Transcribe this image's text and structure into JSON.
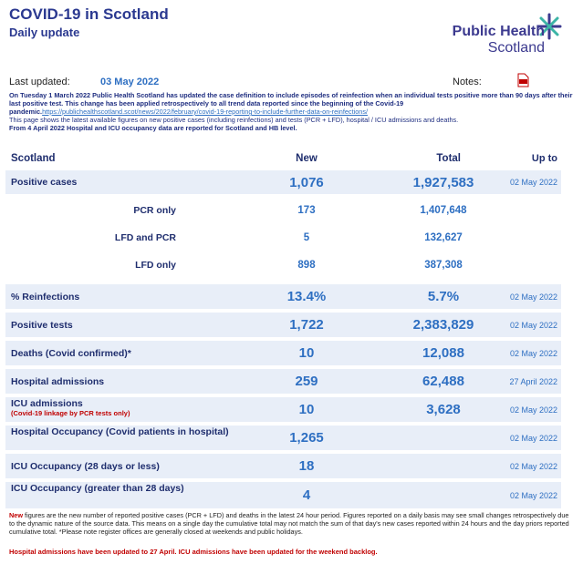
{
  "header": {
    "title": "COVID-19 in Scotland",
    "subtitle": "Daily update",
    "logo_top": "Public Health",
    "logo_bottom": "Scotland"
  },
  "meta": {
    "last_updated_label": "Last updated:",
    "last_updated": "03 May 2022",
    "notes_label": "Notes:"
  },
  "intro": {
    "p1": "On Tuesday 1 March 2022 Public Health Scotland has updated the case definition to include episodes of reinfection when an individual tests positive more than 90 days after their last positive test. This change has been applied retrospectively to all trend data reported since the beginning of the Covid-19 pandemic.",
    "link": "https://publichealthscotland.scot/news/2022/february/covid-19-reporting-to-include-further-data-on-reinfections/",
    "p2": "This page shows the latest available figures on new positive cases (including reinfections) and tests (PCR + LFD), hospital / ICU admissions and deaths.",
    "p3": "From 4 April 2022 Hospital and ICU occupancy data are reported for Scotland and HB level."
  },
  "table": {
    "columns": [
      "Scotland",
      "New",
      "Total",
      "Up to"
    ],
    "rows": [
      {
        "label": "Positive cases",
        "new": "1,076",
        "total": "1,927,583",
        "upto": "02 May 2022"
      },
      {
        "label": "PCR only",
        "new": "173",
        "total": "1,407,648",
        "sub": true
      },
      {
        "label": "LFD and PCR",
        "new": "5",
        "total": "132,627",
        "sub": true
      },
      {
        "label": "LFD only",
        "new": "898",
        "total": "387,308",
        "sub": true
      },
      {
        "label": "% Reinfections",
        "new": "13.4%",
        "total": "5.7%",
        "upto": "02 May 2022"
      },
      {
        "label": "Positive tests",
        "new": "1,722",
        "total": "2,383,829",
        "upto": "02 May 2022"
      },
      {
        "label": "Deaths (Covid confirmed)*",
        "new": "10",
        "total": "12,088",
        "upto": "02 May 2022"
      },
      {
        "label": "Hospital admissions",
        "new": "259",
        "total": "62,488",
        "upto": "27 April 2022"
      },
      {
        "label": "ICU admissions",
        "note": "(Covid-19 linkage by PCR tests only)",
        "new": "10",
        "total": "3,628",
        "upto": "02 May 2022"
      },
      {
        "label": "Hospital Occupancy (Covid patients in hospital)",
        "new": "1,265",
        "upto": "02 May 2022"
      },
      {
        "label": "ICU Occupancy (28 days or less)",
        "new": "18",
        "upto": "02 May 2022"
      },
      {
        "label": "ICU Occupancy (greater than 28 days)",
        "new": "4",
        "upto": "02 May 2022"
      }
    ]
  },
  "footer": {
    "lead": "New",
    "text": " figures are the new number of reported positive cases (PCR + LFD) and deaths in the latest 24 hour period. Figures reported on a daily basis may see small changes retrospectively due to the dynamic nature of the source data. This means on a single day the cumulative total may not match the sum of that day's new cases reported within 24 hours and the day priors reported cumulative total. *Please note register offices are generally closed at weekends and public holidays.",
    "update": "Hospital admissions have been updated to 27 April. ICU admissions have been updated for the weekend backlog."
  }
}
